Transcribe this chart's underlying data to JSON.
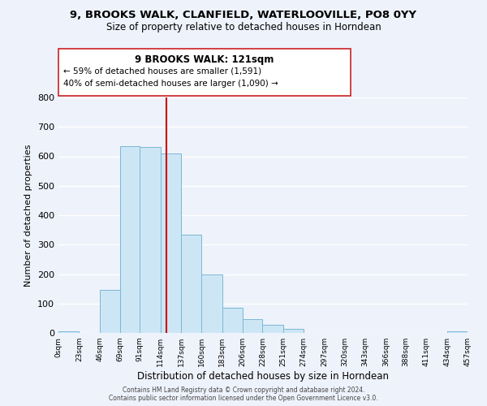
{
  "title_line1": "9, BROOKS WALK, CLANFIELD, WATERLOOVILLE, PO8 0YY",
  "title_line2": "Size of property relative to detached houses in Horndean",
  "bar_edges": [
    0,
    23,
    46,
    69,
    91,
    114,
    137,
    160,
    183,
    206,
    228,
    251,
    274,
    297,
    320,
    343,
    366,
    388,
    411,
    434,
    457
  ],
  "bar_heights": [
    5,
    0,
    145,
    635,
    633,
    610,
    335,
    200,
    85,
    47,
    27,
    13,
    0,
    0,
    0,
    0,
    0,
    0,
    0,
    5
  ],
  "bar_color": "#cde6f5",
  "bar_edgecolor": "#7ab8d4",
  "property_line_x": 121,
  "property_line_color": "#cc0000",
  "xlabel": "Distribution of detached houses by size in Horndean",
  "ylabel": "Number of detached properties",
  "ylim": [
    0,
    800
  ],
  "yticks": [
    0,
    100,
    200,
    300,
    400,
    500,
    600,
    700,
    800
  ],
  "xtick_labels": [
    "0sqm",
    "23sqm",
    "46sqm",
    "69sqm",
    "91sqm",
    "114sqm",
    "137sqm",
    "160sqm",
    "183sqm",
    "206sqm",
    "228sqm",
    "251sqm",
    "274sqm",
    "297sqm",
    "320sqm",
    "343sqm",
    "366sqm",
    "388sqm",
    "411sqm",
    "434sqm",
    "457sqm"
  ],
  "annotation_text_line1": "9 BROOKS WALK: 121sqm",
  "annotation_text_line2": "← 59% of detached houses are smaller (1,591)",
  "annotation_text_line3": "40% of semi-detached houses are larger (1,090) →",
  "footer_line1": "Contains HM Land Registry data © Crown copyright and database right 2024.",
  "footer_line2": "Contains public sector information licensed under the Open Government Licence v3.0.",
  "background_color": "#eef2fb",
  "plot_bg_color": "#eef2fb",
  "grid_color": "white",
  "title1_fontsize": 9.5,
  "title2_fontsize": 8.5,
  "xlabel_fontsize": 8.5,
  "ylabel_fontsize": 8.0,
  "xtick_fontsize": 6.5,
  "ytick_fontsize": 8.0,
  "annotation_fontsize_title": 8.5,
  "annotation_fontsize_body": 7.5,
  "footer_fontsize": 5.5
}
